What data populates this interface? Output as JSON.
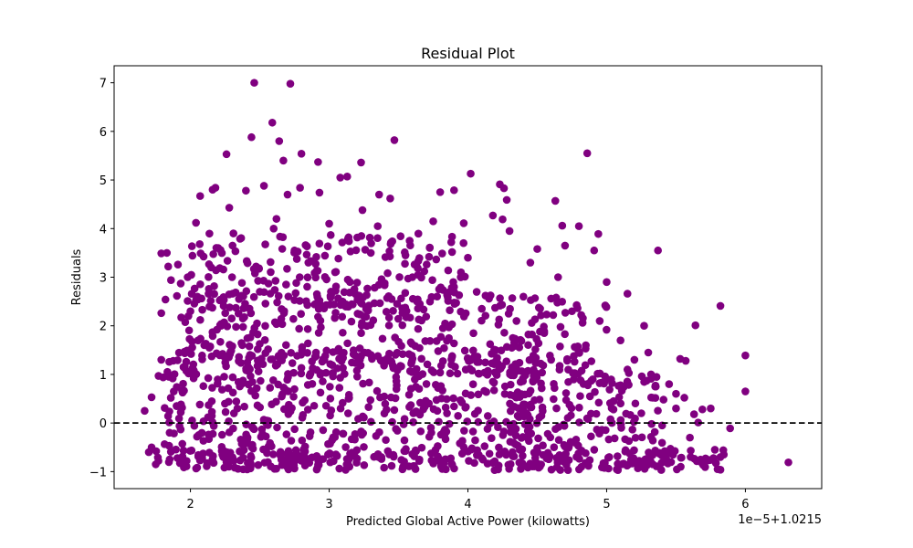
{
  "chart_data": {
    "type": "scatter",
    "title": "Residual Plot",
    "xlabel": "Predicted Global Active Power (kilowatts)",
    "ylabel": "Residuals",
    "x_offset_label": "1e−5+1.0215",
    "xlim": [
      1.45,
      6.55
    ],
    "ylim": [
      -1.35,
      7.35
    ],
    "x_ticks": [
      2,
      3,
      4,
      5,
      6
    ],
    "y_ticks": [
      -1,
      0,
      1,
      2,
      3,
      4,
      5,
      6,
      7
    ],
    "x_tick_labels": [
      "2",
      "3",
      "4",
      "5",
      "6"
    ],
    "y_tick_labels": [
      "−1",
      "0",
      "1",
      "2",
      "3",
      "4",
      "5",
      "6",
      "7"
    ],
    "reference_line": {
      "y": 0,
      "style": "dashed",
      "color": "#000000"
    },
    "marker_color": "#800080",
    "grid": false,
    "legend": "none",
    "points": [
      [
        2.46,
        7.0
      ],
      [
        2.72,
        6.98
      ],
      [
        2.59,
        6.18
      ],
      [
        2.44,
        5.88
      ],
      [
        2.64,
        5.8
      ],
      [
        2.26,
        5.53
      ],
      [
        2.8,
        5.54
      ],
      [
        2.67,
        5.4
      ],
      [
        2.92,
        5.37
      ],
      [
        3.23,
        5.36
      ],
      [
        3.47,
        5.82
      ],
      [
        4.02,
        5.13
      ],
      [
        4.86,
        5.55
      ],
      [
        3.08,
        5.05
      ],
      [
        3.13,
        5.07
      ],
      [
        2.53,
        4.88
      ],
      [
        2.79,
        4.84
      ],
      [
        2.07,
        4.67
      ],
      [
        2.16,
        4.8
      ],
      [
        2.18,
        4.84
      ],
      [
        2.4,
        4.78
      ],
      [
        2.7,
        4.7
      ],
      [
        2.93,
        4.74
      ],
      [
        3.36,
        4.7
      ],
      [
        3.44,
        4.62
      ],
      [
        3.8,
        4.75
      ],
      [
        3.9,
        4.79
      ],
      [
        4.23,
        4.91
      ],
      [
        4.26,
        4.83
      ],
      [
        4.28,
        4.59
      ],
      [
        4.63,
        4.57
      ],
      [
        3.24,
        4.38
      ],
      [
        2.28,
        4.43
      ],
      [
        2.04,
        4.12
      ],
      [
        2.62,
        4.2
      ],
      [
        4.18,
        4.27
      ],
      [
        3.97,
        4.11
      ],
      [
        4.68,
        4.06
      ],
      [
        4.8,
        4.05
      ],
      [
        4.94,
        3.89
      ],
      [
        4.25,
        4.19
      ],
      [
        4.3,
        3.95
      ],
      [
        3.58,
        3.75
      ],
      [
        5.37,
        3.55
      ],
      [
        4.91,
        3.55
      ],
      [
        4.7,
        3.65
      ],
      [
        4.5,
        3.58
      ],
      [
        3.88,
        3.72
      ],
      [
        2.31,
        3.9
      ],
      [
        2.83,
        3.66
      ],
      [
        3.14,
        3.82
      ],
      [
        3.72,
        3.42
      ],
      [
        5.82,
        2.41
      ],
      [
        5.64,
        2.01
      ],
      [
        6.0,
        1.39
      ],
      [
        6.0,
        0.65
      ],
      [
        5.57,
        1.28
      ],
      [
        5.53,
        1.32
      ],
      [
        5.15,
        2.66
      ],
      [
        5.27,
        2.0
      ],
      [
        5.0,
        2.9
      ],
      [
        4.6,
        2.56
      ],
      [
        5.3,
        1.45
      ],
      [
        5.89,
        -0.11
      ],
      [
        6.31,
        -0.81
      ],
      [
        1.67,
        0.25
      ],
      [
        1.72,
        0.53
      ],
      [
        5.82,
        -0.7
      ],
      [
        5.73,
        -0.77
      ],
      [
        5.63,
        0.18
      ],
      [
        5.66,
        0.01
      ],
      [
        5.69,
        0.28
      ],
      [
        5.41,
        0.48
      ],
      [
        5.56,
        0.52
      ],
      [
        5.75,
        0.3
      ],
      [
        1.79,
        3.49
      ],
      [
        1.83,
        3.5
      ],
      [
        1.84,
        3.22
      ],
      [
        1.91,
        3.26
      ],
      [
        1.86,
        2.94
      ],
      [
        1.79,
        2.26
      ],
      [
        1.82,
        2.54
      ],
      [
        1.93,
        2.87
      ],
      [
        1.79,
        1.3
      ],
      [
        1.77,
        0.97
      ],
      [
        1.7,
        -0.6
      ],
      [
        1.75,
        -0.85
      ],
      [
        1.72,
        -0.5
      ],
      [
        4.51,
        -0.92
      ],
      [
        4.71,
        -0.86
      ],
      [
        5.08,
        -0.84
      ],
      [
        5.22,
        -0.79
      ],
      [
        5.38,
        -0.63
      ],
      [
        5.46,
        -0.53
      ],
      [
        2.3,
        3.0
      ],
      [
        2.5,
        2.7
      ],
      [
        3.6,
        3.0
      ],
      [
        3.9,
        2.8
      ],
      [
        4.4,
        2.6
      ],
      [
        4.75,
        2.3
      ],
      [
        4.95,
        2.1
      ],
      [
        5.1,
        1.7
      ],
      [
        5.2,
        1.3
      ],
      [
        5.32,
        1.0
      ],
      [
        5.45,
        0.8
      ],
      [
        5.5,
        0.3
      ],
      [
        4.0,
        3.4
      ],
      [
        3.3,
        3.5
      ],
      [
        2.85,
        3.3
      ],
      [
        2.15,
        3.2
      ],
      [
        2.05,
        2.6
      ],
      [
        2.0,
        2.3
      ],
      [
        2.6,
        4.0
      ],
      [
        3.0,
        4.1
      ],
      [
        3.35,
        4.05
      ],
      [
        3.75,
        4.15
      ],
      [
        2.48,
        2.05
      ],
      [
        3.82,
        1.95
      ],
      [
        4.2,
        1.5
      ],
      [
        4.6,
        1.3
      ],
      [
        4.9,
        0.9
      ],
      [
        5.05,
        0.45
      ],
      [
        5.25,
        0.2
      ],
      [
        5.4,
        -0.05
      ],
      [
        5.6,
        -0.3
      ],
      [
        5.78,
        -0.55
      ],
      [
        2.1,
        1.6
      ],
      [
        1.95,
        1.15
      ],
      [
        1.9,
        0.35
      ],
      [
        1.85,
        -0.2
      ],
      [
        3.15,
        2.9
      ],
      [
        2.35,
        2.55
      ],
      [
        2.95,
        2.4
      ],
      [
        3.45,
        2.55
      ],
      [
        4.1,
        2.35
      ],
      [
        4.35,
        2.1
      ],
      [
        4.55,
        1.85
      ],
      [
        4.85,
        1.6
      ],
      [
        5.15,
        1.1
      ],
      [
        5.35,
        0.75
      ],
      [
        5.5,
        0.6
      ],
      [
        4.45,
        3.3
      ],
      [
        4.65,
        3.0
      ],
      [
        3.55,
        3.45
      ],
      [
        3.95,
        3.1
      ],
      [
        2.75,
        3.55
      ],
      [
        2.2,
        3.6
      ],
      [
        1.98,
        3.0
      ]
    ],
    "dense_clusters": [
      {
        "x_range": [
          1.8,
          4.55
        ],
        "y_range": [
          -0.95,
          1.5
        ],
        "count": 520
      },
      {
        "x_range": [
          1.9,
          4.35
        ],
        "y_range": [
          1.0,
          2.7
        ],
        "count": 300
      },
      {
        "x_range": [
          2.0,
          4.0
        ],
        "y_range": [
          2.3,
          3.9
        ],
        "count": 180
      },
      {
        "x_range": [
          4.3,
          5.4
        ],
        "y_range": [
          -0.95,
          1.1
        ],
        "count": 170
      },
      {
        "x_range": [
          4.3,
          5.0
        ],
        "y_range": [
          0.8,
          2.6
        ],
        "count": 70
      },
      {
        "x_range": [
          1.75,
          5.85
        ],
        "y_range": [
          -0.97,
          -0.55
        ],
        "count": 220
      }
    ]
  }
}
